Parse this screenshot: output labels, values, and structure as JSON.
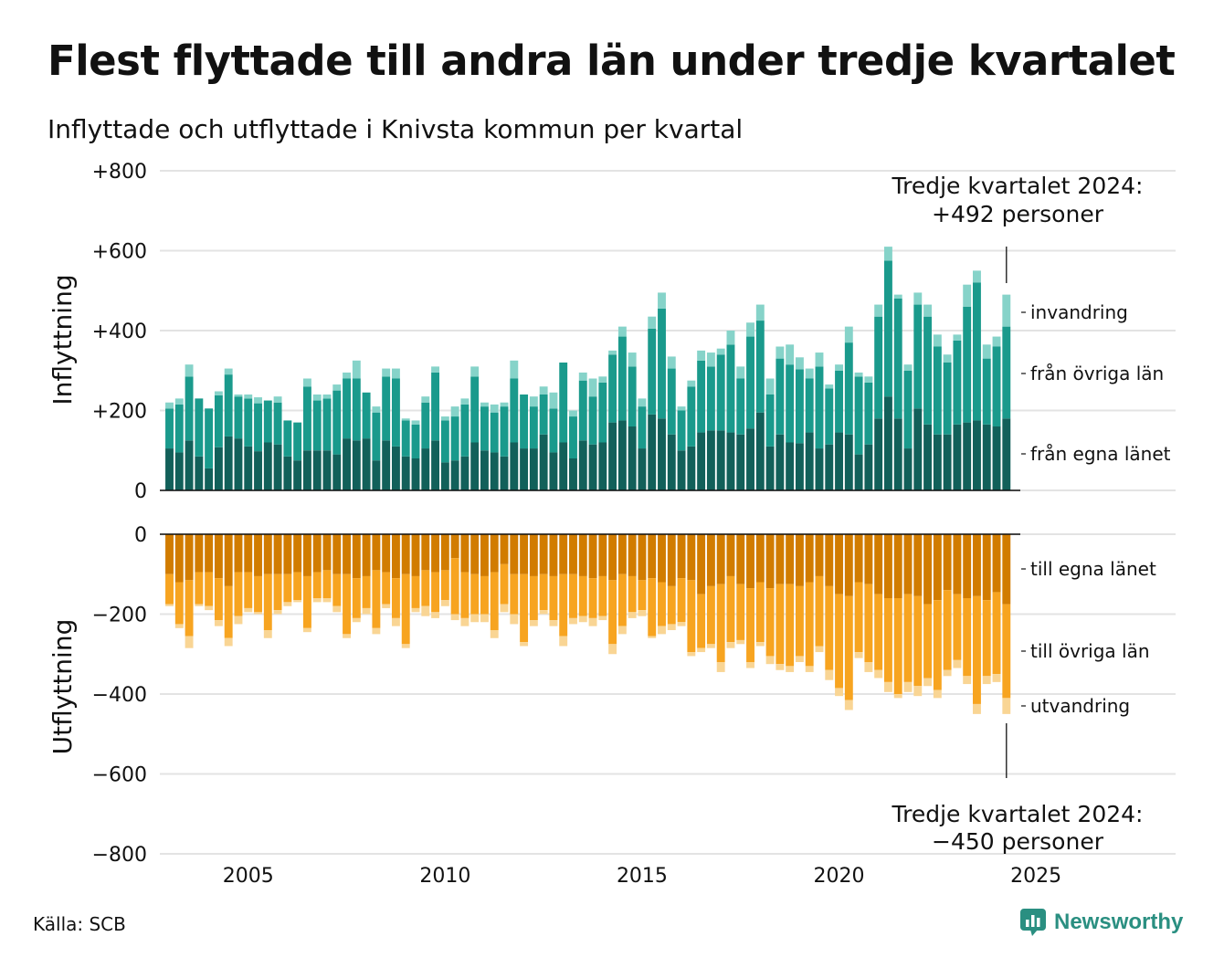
{
  "title": "Flest flyttade till andra län under tredje kvartalet",
  "subtitle": "Inflyttade och utflyttade i Knivsta kommun per kvartal",
  "source": "Källa: SCB",
  "logo_text": "Newsworthy",
  "colors": {
    "in_own": "#12605a",
    "in_other": "#1a9a8c",
    "in_immigration": "#86d3c9",
    "out_own": "#d17c00",
    "out_other": "#f7a420",
    "out_emigration": "#f9d594",
    "grid": "#e3e3e3",
    "brand": "#2a8f81"
  },
  "chart_data": [
    {
      "type": "bar",
      "stacked": true,
      "ylabel": "Inflyttning",
      "ylim": [
        0,
        800
      ],
      "yticks": [
        0,
        200,
        400,
        600,
        800
      ],
      "ytick_labels": [
        "0",
        "+200",
        "+400",
        "+600",
        "+800"
      ],
      "x_start": "2003 Q1",
      "xticks": [
        "2005",
        "2010",
        "2015",
        "2020",
        "2025"
      ],
      "annotation": {
        "line1": "Tredje kvartalet 2024:",
        "line2": "+492 personer"
      },
      "series": [
        {
          "name": "från egna länet",
          "color": "#12605a",
          "values": [
            105,
            95,
            125,
            85,
            55,
            108,
            135,
            130,
            110,
            98,
            120,
            115,
            85,
            75,
            100,
            100,
            100,
            90,
            130,
            125,
            130,
            75,
            125,
            110,
            85,
            80,
            105,
            125,
            70,
            75,
            85,
            120,
            100,
            95,
            85,
            120,
            105,
            105,
            140,
            95,
            120,
            80,
            125,
            115,
            120,
            170,
            175,
            160,
            105,
            190,
            180,
            140,
            100,
            110,
            145,
            150,
            150,
            145,
            140,
            155,
            195,
            110,
            140,
            120,
            118,
            145,
            105,
            115,
            145,
            140,
            90,
            115,
            180,
            235,
            180,
            105,
            205,
            165,
            140,
            140,
            165,
            170,
            175,
            165,
            160,
            180
          ]
        },
        {
          "name": "från övriga län",
          "color": "#1a9a8c",
          "values": [
            100,
            120,
            160,
            145,
            150,
            130,
            155,
            105,
            120,
            120,
            105,
            105,
            90,
            95,
            160,
            125,
            130,
            160,
            150,
            155,
            115,
            120,
            160,
            170,
            90,
            85,
            115,
            170,
            105,
            110,
            130,
            165,
            110,
            100,
            125,
            160,
            135,
            105,
            100,
            110,
            200,
            105,
            150,
            120,
            150,
            170,
            210,
            150,
            105,
            215,
            275,
            165,
            100,
            150,
            180,
            160,
            190,
            220,
            140,
            230,
            230,
            130,
            190,
            195,
            185,
            135,
            205,
            140,
            155,
            230,
            195,
            155,
            255,
            340,
            300,
            195,
            260,
            270,
            220,
            180,
            210,
            290,
            345,
            165,
            200,
            230
          ]
        },
        {
          "name": "invandring",
          "color": "#86d3c9",
          "values": [
            15,
            15,
            30,
            0,
            0,
            10,
            15,
            5,
            10,
            15,
            0,
            15,
            0,
            0,
            20,
            15,
            10,
            15,
            15,
            45,
            0,
            15,
            20,
            25,
            5,
            10,
            15,
            15,
            10,
            25,
            15,
            25,
            10,
            20,
            10,
            45,
            0,
            25,
            20,
            40,
            0,
            15,
            20,
            45,
            15,
            10,
            25,
            35,
            20,
            30,
            40,
            30,
            10,
            15,
            25,
            35,
            15,
            35,
            30,
            35,
            40,
            40,
            30,
            50,
            30,
            25,
            35,
            10,
            15,
            40,
            10,
            15,
            30,
            35,
            10,
            15,
            30,
            30,
            30,
            20,
            15,
            55,
            30,
            35,
            25,
            80
          ]
        }
      ],
      "end_labels": [
        "invandring",
        "från övriga län",
        "från egna länet"
      ]
    },
    {
      "type": "bar",
      "stacked": true,
      "ylabel": "Utflyttning",
      "ylim": [
        -800,
        0
      ],
      "yticks": [
        0,
        -200,
        -400,
        -600,
        -800
      ],
      "ytick_labels": [
        "0",
        "−200",
        "−400",
        "−600",
        "−800"
      ],
      "x_start": "2003 Q1",
      "xticks": [
        "2005",
        "2010",
        "2015",
        "2020",
        "2025"
      ],
      "annotation": {
        "line1": "Tredje kvartalet 2024:",
        "line2": "−450 personer"
      },
      "series": [
        {
          "name": "till egna länet",
          "color": "#d17c00",
          "values": [
            -100,
            -120,
            -115,
            -95,
            -95,
            -110,
            -130,
            -95,
            -95,
            -105,
            -100,
            -100,
            -100,
            -95,
            -105,
            -95,
            -90,
            -100,
            -100,
            -110,
            -105,
            -90,
            -95,
            -110,
            -100,
            -105,
            -90,
            -95,
            -90,
            -60,
            -95,
            -100,
            -105,
            -95,
            -75,
            -100,
            -100,
            -105,
            -100,
            -105,
            -100,
            -100,
            -105,
            -110,
            -105,
            -115,
            -100,
            -105,
            -115,
            -110,
            -120,
            -130,
            -110,
            -115,
            -150,
            -130,
            -125,
            -105,
            -125,
            -135,
            -120,
            -135,
            -125,
            -125,
            -130,
            -120,
            -105,
            -130,
            -150,
            -155,
            -120,
            -125,
            -150,
            -160,
            -160,
            -150,
            -155,
            -175,
            -165,
            -140,
            -150,
            -160,
            -155,
            -165,
            -145,
            -175
          ]
        },
        {
          "name": "till övriga län",
          "color": "#f7a420",
          "values": [
            -75,
            -105,
            -140,
            -80,
            -85,
            -105,
            -130,
            -110,
            -90,
            -90,
            -140,
            -90,
            -70,
            -70,
            -130,
            -65,
            -70,
            -80,
            -150,
            -100,
            -80,
            -145,
            -80,
            -100,
            -175,
            -80,
            -90,
            -100,
            -75,
            -140,
            -115,
            -100,
            -95,
            -145,
            -100,
            -100,
            -170,
            -110,
            -90,
            -110,
            -155,
            -110,
            -100,
            -100,
            -100,
            -160,
            -130,
            -90,
            -75,
            -145,
            -110,
            -95,
            -110,
            -180,
            -135,
            -145,
            -195,
            -165,
            -140,
            -185,
            -150,
            -170,
            -200,
            -205,
            -175,
            -210,
            -175,
            -210,
            -235,
            -260,
            -175,
            -195,
            -190,
            -210,
            -240,
            -220,
            -225,
            -185,
            -225,
            -200,
            -165,
            -195,
            -270,
            -190,
            -205,
            -235
          ]
        },
        {
          "name": "utvandring",
          "color": "#f9d594",
          "values": [
            -5,
            -10,
            -30,
            -5,
            -10,
            -15,
            -20,
            -20,
            -10,
            -5,
            -20,
            -10,
            -10,
            -5,
            -10,
            -10,
            -10,
            -15,
            -10,
            -10,
            -15,
            -15,
            -10,
            -20,
            -10,
            -10,
            -25,
            -15,
            -15,
            -15,
            -20,
            -20,
            -20,
            -20,
            -20,
            -25,
            -10,
            -15,
            -10,
            -15,
            -25,
            -15,
            -15,
            -20,
            -10,
            -25,
            -20,
            -15,
            -15,
            -5,
            -20,
            -15,
            -10,
            -10,
            -10,
            -10,
            -25,
            -15,
            -10,
            -15,
            -10,
            -20,
            -15,
            -15,
            -15,
            -15,
            -15,
            -25,
            -20,
            -25,
            -15,
            -25,
            -20,
            -25,
            -10,
            -25,
            -25,
            -20,
            -20,
            -15,
            -20,
            -20,
            -25,
            -20,
            -20,
            -40
          ]
        }
      ],
      "end_labels": [
        "till egna länet",
        "till övriga län",
        "utvandring"
      ]
    }
  ]
}
